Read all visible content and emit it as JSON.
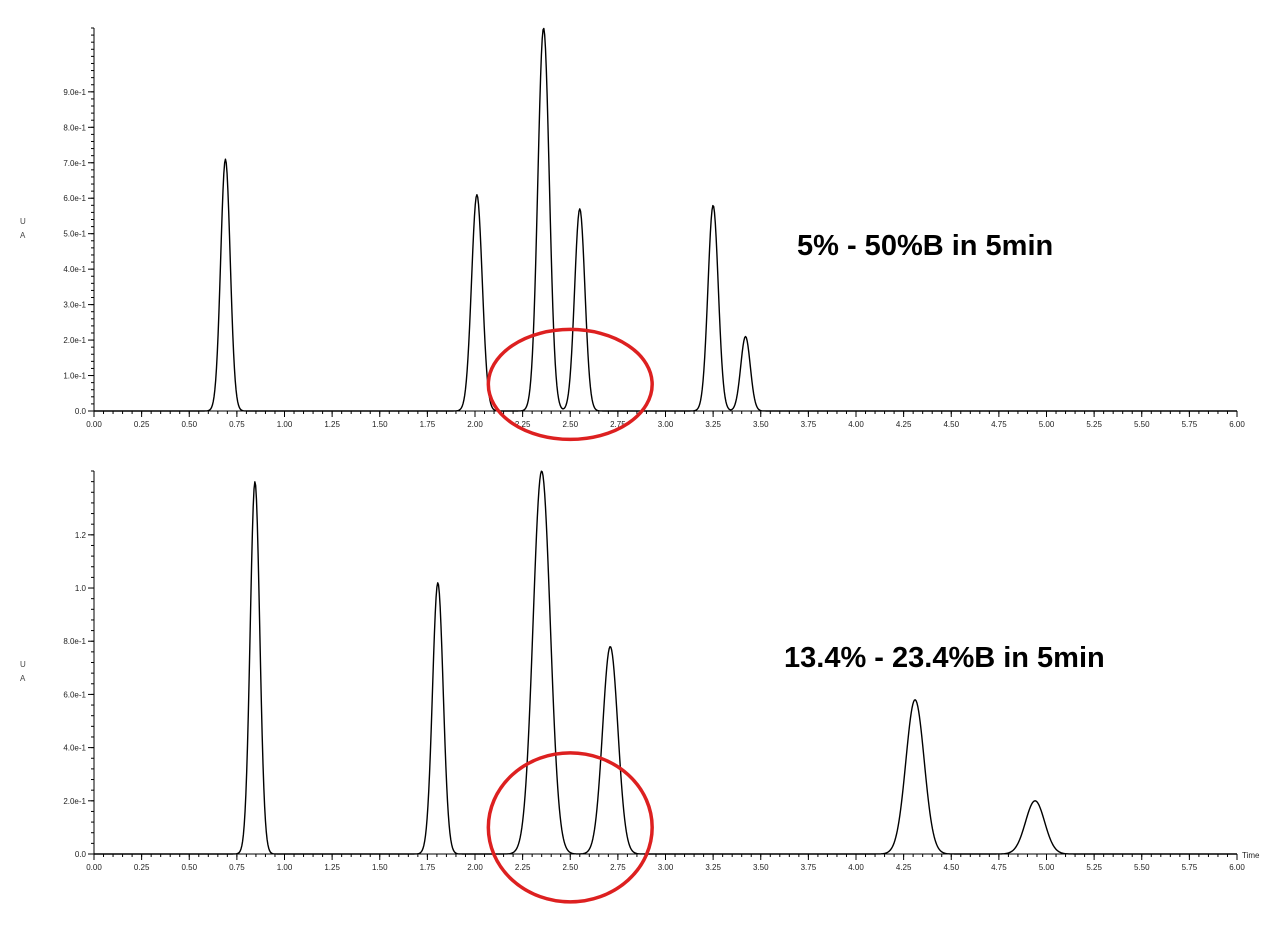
{
  "chart_data": [
    {
      "type": "line",
      "annotation": "5% - 50%B in 5min",
      "ylabel_top": "U",
      "ylabel_bottom": "A",
      "xlim": [
        0,
        6
      ],
      "ylim": [
        0,
        1.08
      ],
      "x_ticks": [
        0,
        0.25,
        0.5,
        0.75,
        1,
        1.25,
        1.5,
        1.75,
        2,
        2.25,
        2.5,
        2.75,
        3,
        3.25,
        3.5,
        3.75,
        4,
        4.25,
        4.5,
        4.75,
        5,
        5.25,
        5.5,
        5.75,
        6
      ],
      "x_tick_labels": [
        "0.00",
        "0.25",
        "0.50",
        "0.75",
        "1.00",
        "1.25",
        "1.50",
        "1.75",
        "2.00",
        "2.25",
        "2.50",
        "2.75",
        "3.00",
        "3.25",
        "3.50",
        "3.75",
        "4.00",
        "4.25",
        "4.50",
        "4.75",
        "5.00",
        "5.25",
        "5.50",
        "5.75",
        "6.00"
      ],
      "y_ticks": [
        0,
        0.1,
        0.2,
        0.3,
        0.4,
        0.5,
        0.6,
        0.7,
        0.8,
        0.9
      ],
      "y_tick_labels": [
        "0.0",
        "1.0e-1",
        "2.0e-1",
        "3.0e-1",
        "4.0e-1",
        "5.0e-1",
        "6.0e-1",
        "7.0e-1",
        "8.0e-1",
        "9.0e-1"
      ],
      "peaks": [
        {
          "rt": 0.69,
          "height": 0.71,
          "width": 0.025
        },
        {
          "rt": 2.01,
          "height": 0.61,
          "width": 0.028
        },
        {
          "rt": 2.36,
          "height": 1.08,
          "width": 0.03
        },
        {
          "rt": 2.55,
          "height": 0.57,
          "width": 0.027
        },
        {
          "rt": 3.25,
          "height": 0.58,
          "width": 0.027
        },
        {
          "rt": 3.42,
          "height": 0.21,
          "width": 0.025
        }
      ],
      "highlight_region": {
        "x_center": 2.5,
        "x_half_width": 0.43,
        "y_center": 0.075,
        "y_half_height": 0.155
      }
    },
    {
      "type": "line",
      "annotation": "13.4% - 23.4%B in 5min",
      "ylabel_top": "U",
      "ylabel_bottom": "A",
      "xlabel": "Time",
      "xlim": [
        0,
        6
      ],
      "ylim": [
        0,
        1.44
      ],
      "x_ticks": [
        0,
        0.25,
        0.5,
        0.75,
        1,
        1.25,
        1.5,
        1.75,
        2,
        2.25,
        2.5,
        2.75,
        3,
        3.25,
        3.5,
        3.75,
        4,
        4.25,
        4.5,
        4.75,
        5,
        5.25,
        5.5,
        5.75,
        6
      ],
      "x_tick_labels": [
        "0.00",
        "0.25",
        "0.50",
        "0.75",
        "1.00",
        "1.25",
        "1.50",
        "1.75",
        "2.00",
        "2.25",
        "2.50",
        "2.75",
        "3.00",
        "3.25",
        "3.50",
        "3.75",
        "4.00",
        "4.25",
        "4.50",
        "4.75",
        "5.00",
        "5.25",
        "5.50",
        "5.75",
        "6.00"
      ],
      "y_ticks": [
        0,
        0.2,
        0.4,
        0.6,
        0.8,
        1.0,
        1.2
      ],
      "y_tick_labels": [
        "0.0",
        "2.0e-1",
        "4.0e-1",
        "6.0e-1",
        "8.0e-1",
        "1.0",
        "1.2"
      ],
      "peaks": [
        {
          "rt": 0.845,
          "height": 1.4,
          "width": 0.025
        },
        {
          "rt": 1.805,
          "height": 1.02,
          "width": 0.028
        },
        {
          "rt": 2.35,
          "height": 1.44,
          "width": 0.045
        },
        {
          "rt": 2.71,
          "height": 0.78,
          "width": 0.04
        },
        {
          "rt": 4.31,
          "height": 0.58,
          "width": 0.048
        },
        {
          "rt": 4.94,
          "height": 0.2,
          "width": 0.05
        }
      ],
      "highlight_region": {
        "x_center": 2.5,
        "x_half_width": 0.43,
        "y_center": 0.1,
        "y_half_height": 0.28
      }
    }
  ]
}
